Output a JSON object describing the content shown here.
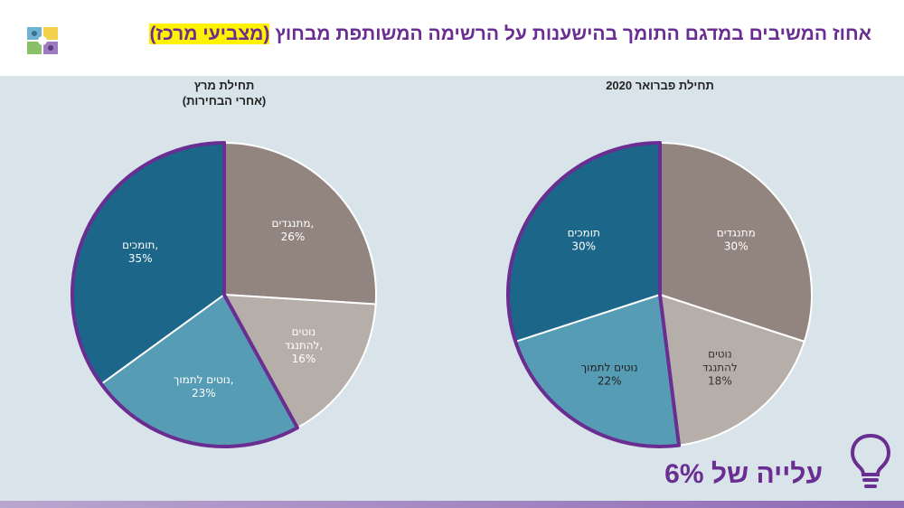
{
  "header": {
    "title_main": "אחוז המשיבים במדגם התומך בהישענות על הרשימה המשותפת מבחוץ",
    "title_highlight": "(מצביעי מרכז)",
    "logo_icon": "puzzle-people-icon"
  },
  "callout": {
    "text": "עלייה של 6%",
    "icon": "lightbulb-icon"
  },
  "colors": {
    "supporters": "#1b6689",
    "lean_support": "#569cb5",
    "lean_oppose": "#b6aea8",
    "opponents": "#928580",
    "highlight_border": "#6a2d91",
    "title": "#6a2d91"
  },
  "chart_data": [
    {
      "type": "pie",
      "title_line1": "תחילת מרץ",
      "title_line2": "(אחרי הבחירות)",
      "slices": [
        {
          "label_line1": "מתנגדים,",
          "label_line2": "26%",
          "value": 26,
          "color_key": "opponents",
          "text_color": "#ffffff"
        },
        {
          "label_line1": "נוטים",
          "label_line2": "להתנגד,",
          "label_line3": "16%",
          "value": 16,
          "color_key": "lean_oppose",
          "text_color": "#ffffff"
        },
        {
          "label_line1": "נוטים לתמוך,",
          "label_line2": "23%",
          "value": 23,
          "color_key": "lean_support",
          "text_color": "#ffffff"
        },
        {
          "label_line1": "תומכים,",
          "label_line2": "35%",
          "value": 35,
          "color_key": "supporters",
          "text_color": "#ffffff"
        }
      ]
    },
    {
      "type": "pie",
      "title_line1": "תחילת פברואר 2020",
      "title_line2": "",
      "slices": [
        {
          "label_line1": "מתנגדים",
          "label_line2": "30%",
          "value": 30,
          "color_key": "opponents",
          "text_color": "#ffffff"
        },
        {
          "label_line1": "נוטים",
          "label_line2": "להתנגד",
          "label_line3": "18%",
          "value": 18,
          "color_key": "lean_oppose",
          "text_color": "#333333"
        },
        {
          "label_line1": "נוטים לתמוך",
          "label_line2": "22%",
          "value": 22,
          "color_key": "lean_support",
          "text_color": "#222222"
        },
        {
          "label_line1": "תומכים",
          "label_line2": "30%",
          "value": 30,
          "color_key": "supporters",
          "text_color": "#ffffff"
        }
      ]
    }
  ]
}
